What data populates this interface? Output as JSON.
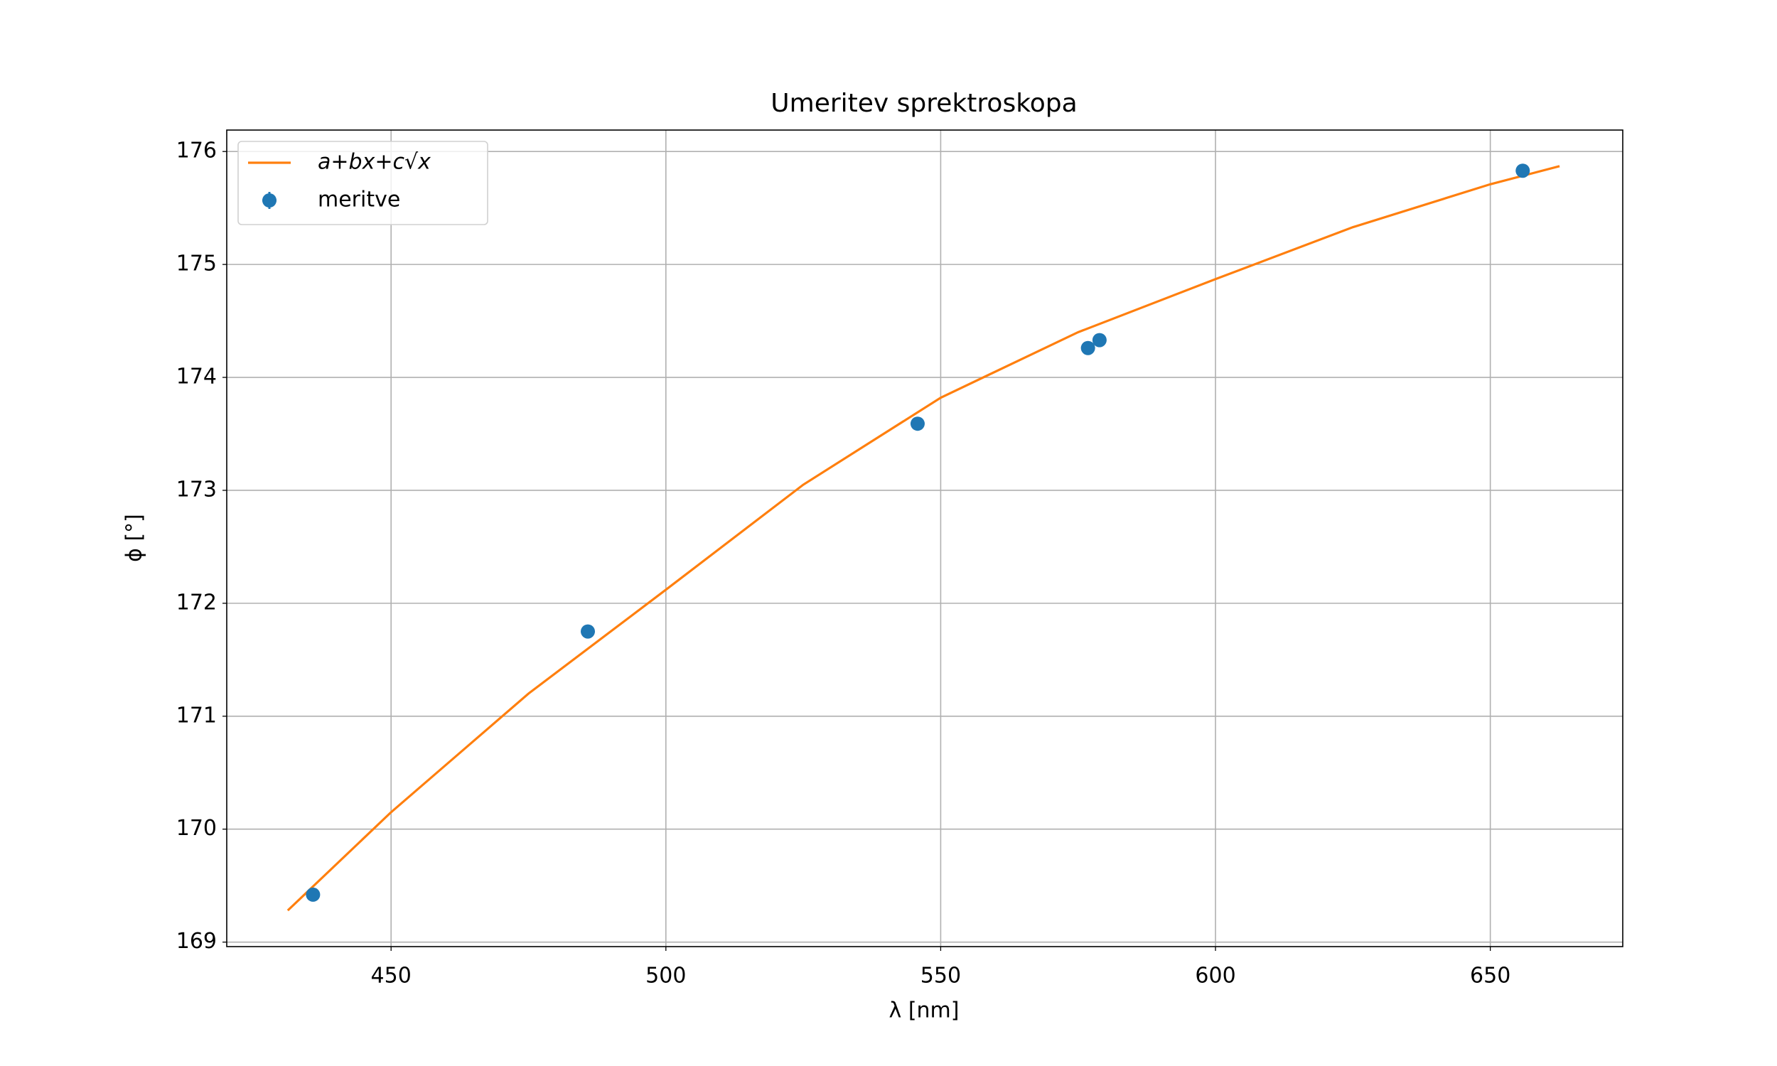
{
  "chart_data": {
    "type": "scatter",
    "title": "Umeritev sprektroskopa",
    "x_label": "λ [nm]",
    "y_label": "ϕ [°]",
    "xlim": [
      420.1,
      674.1
    ],
    "ylim": [
      168.96,
      176.19
    ],
    "xticks": [
      450,
      500,
      550,
      600,
      650
    ],
    "yticks": [
      169,
      170,
      171,
      172,
      173,
      174,
      175,
      176
    ],
    "grid": true,
    "legend": "upper left",
    "series": [
      {
        "name": "a+bx+c√x",
        "type": "line",
        "color": "#ff7f0e",
        "x": [
          431.2,
          450,
          475,
          500,
          525,
          550,
          575,
          600,
          625,
          650,
          662.6
        ],
        "values": [
          169.28,
          170.15,
          171.2,
          172.12,
          173.05,
          173.82,
          174.4,
          174.87,
          175.33,
          175.71,
          175.87
        ]
      },
      {
        "name": "meritve",
        "type": "scatter",
        "color": "#1f77b4",
        "x": [
          435.8,
          485.8,
          545.8,
          576.8,
          578.9,
          655.9
        ],
        "values": [
          169.42,
          171.75,
          173.59,
          174.26,
          174.33,
          175.83
        ]
      }
    ]
  }
}
